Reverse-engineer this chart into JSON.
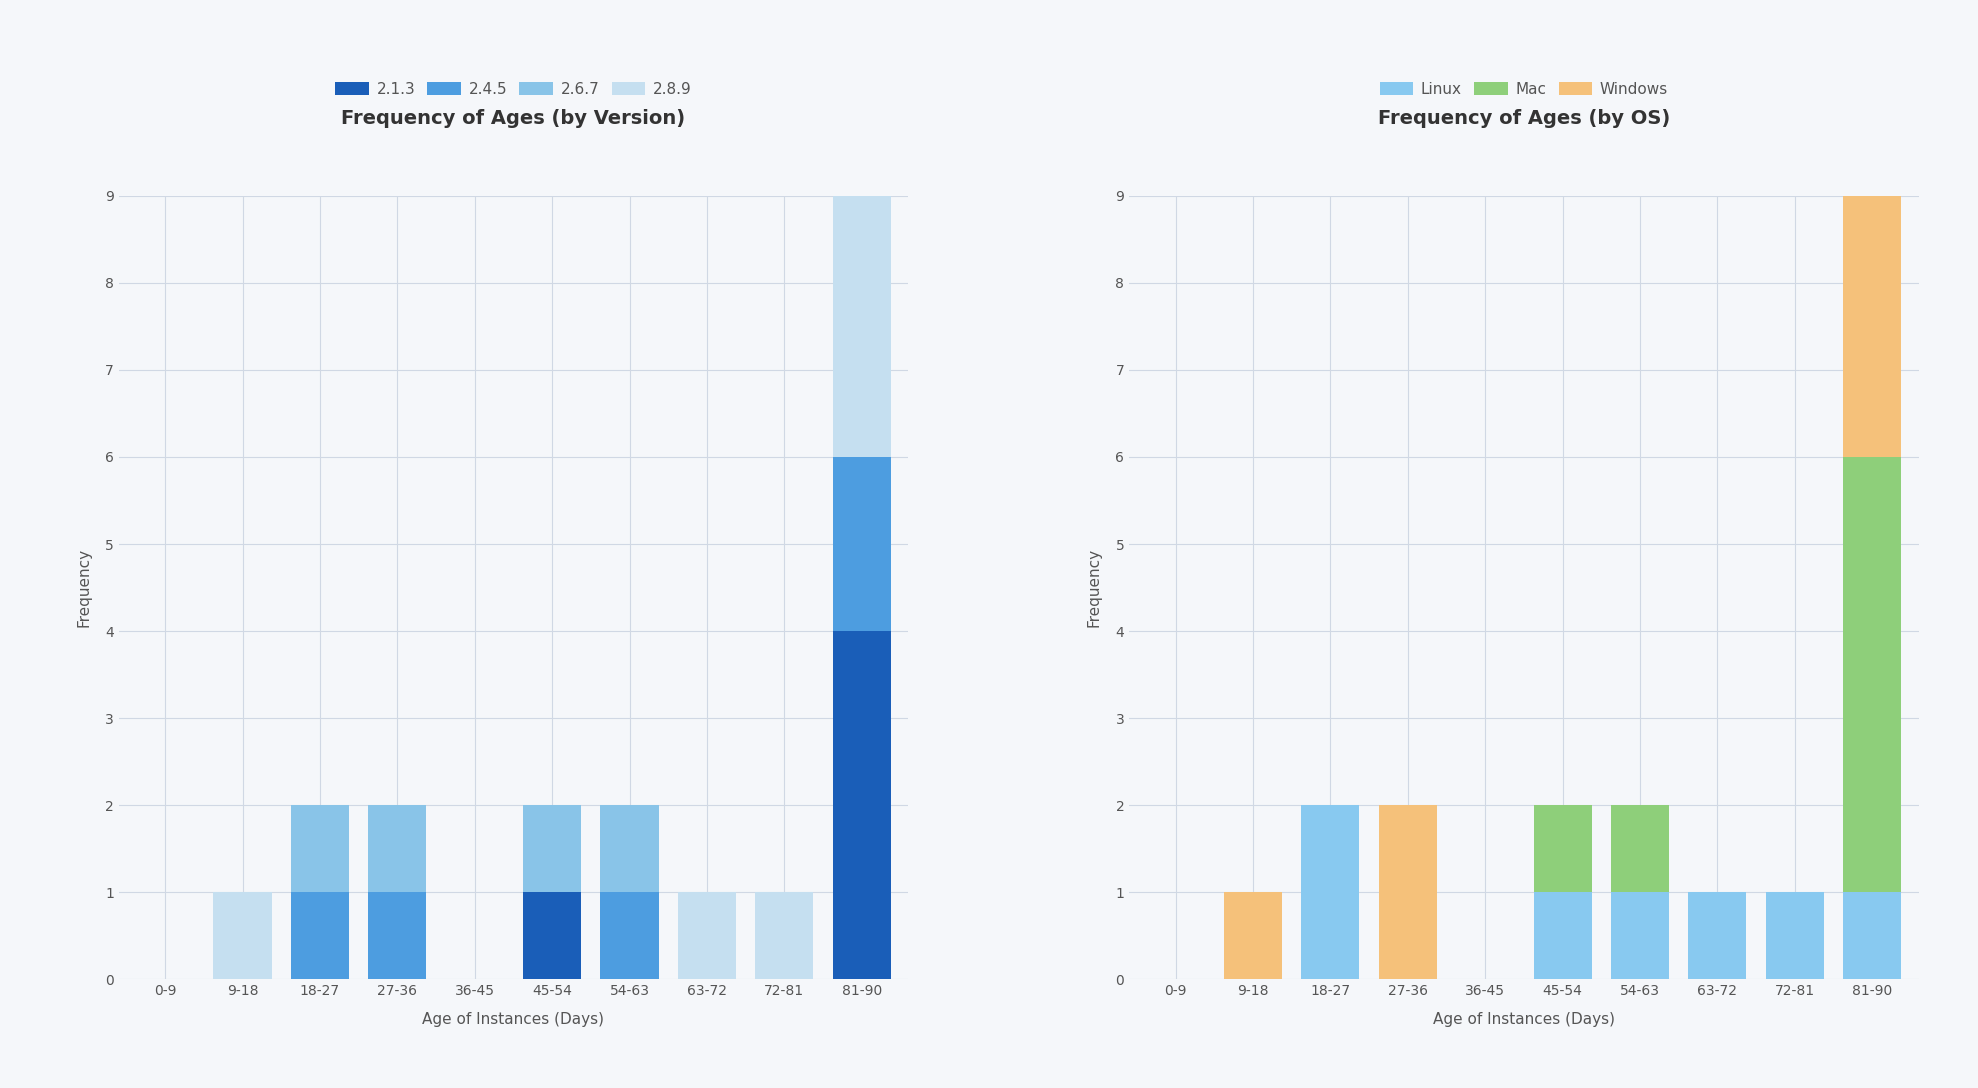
{
  "categories": [
    "0-9",
    "9-18",
    "18-27",
    "27-36",
    "36-45",
    "45-54",
    "54-63",
    "63-72",
    "72-81",
    "81-90"
  ],
  "left_title": "Frequency of Ages (by Version)",
  "right_title": "Frequency of Ages (by OS)",
  "xlabel": "Age of Instances (Days)",
  "ylabel": "Frequency",
  "ylim": [
    0,
    9
  ],
  "yticks": [
    0,
    1,
    2,
    3,
    4,
    5,
    6,
    7,
    8,
    9
  ],
  "version_series": {
    "2.1.3": [
      0,
      0,
      0,
      0,
      0,
      1,
      0,
      0,
      0,
      4
    ],
    "2.4.5": [
      0,
      0,
      1,
      1,
      0,
      0,
      1,
      0,
      0,
      2
    ],
    "2.6.7": [
      0,
      0,
      1,
      1,
      0,
      1,
      1,
      0,
      0,
      0
    ],
    "2.8.9": [
      0,
      1,
      0,
      0,
      0,
      0,
      0,
      1,
      1,
      3
    ]
  },
  "version_colors": {
    "2.1.3": "#1a5eb8",
    "2.4.5": "#4d9de0",
    "2.6.7": "#89c4e8",
    "2.8.9": "#c5dff0"
  },
  "os_series": {
    "Linux": [
      0,
      0,
      2,
      0,
      0,
      1,
      1,
      1,
      1,
      1
    ],
    "Mac": [
      0,
      0,
      0,
      0,
      0,
      1,
      1,
      0,
      0,
      5
    ],
    "Windows": [
      0,
      1,
      0,
      2,
      0,
      0,
      0,
      0,
      0,
      3
    ]
  },
  "os_colors": {
    "Linux": "#88c9f0",
    "Mac": "#8ecf7a",
    "Windows": "#f5c17a"
  },
  "background_color": "#f5f7fa",
  "grid_color": "#d0d8e4",
  "bar_edge_color": "none",
  "title_fontsize": 14,
  "label_fontsize": 11,
  "tick_fontsize": 10,
  "legend_fontsize": 11
}
